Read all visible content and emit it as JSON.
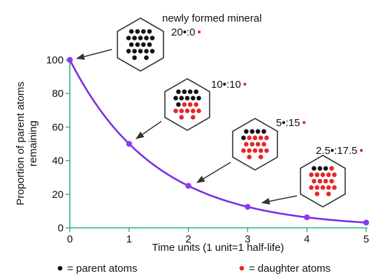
{
  "chart_data": {
    "type": "line",
    "title": "",
    "xlabel": "Time units (1 unit=1 half-life)",
    "ylabel": "Proportion of parent atoms remaining",
    "xlim": [
      0,
      5
    ],
    "ylim": [
      0,
      100
    ],
    "x_ticks": [
      0,
      1,
      2,
      3,
      4,
      5
    ],
    "y_ticks": [
      0,
      20,
      40,
      60,
      80,
      100
    ],
    "series": [
      {
        "values": [
          100,
          50,
          25,
          12.5,
          6.25,
          3.125
        ],
        "x": [
          0,
          1,
          2,
          3,
          4,
          5
        ]
      }
    ],
    "annotations": [
      {
        "title": "newly formed mineral",
        "parent": "20",
        "separator": ":",
        "daughter": "0",
        "parent_atoms": 20,
        "daughter_atoms": 0,
        "at_x": 0
      },
      {
        "title": "",
        "parent": "10",
        "separator": ":",
        "daughter": "10",
        "parent_atoms": 10,
        "daughter_atoms": 10,
        "at_x": 1
      },
      {
        "title": "",
        "parent": "5",
        "separator": ":",
        "daughter": "15",
        "parent_atoms": 5,
        "daughter_atoms": 15,
        "at_x": 2
      },
      {
        "title": "",
        "parent": "2.5",
        "separator": ":",
        "daughter": "17.5",
        "parent_atoms": 2.5,
        "daughter_atoms": 17.5,
        "at_x": 3
      }
    ],
    "legend": [
      {
        "label": "= parent atoms",
        "color": "#111111"
      },
      {
        "label": "= daughter atoms",
        "color": "#e8262a"
      }
    ],
    "colors": {
      "axes": "#2bb573",
      "curve": "#7a2ee6",
      "points": "#8a3cf0",
      "arrow": "#333333",
      "parent": "#111111",
      "daughter": "#e8262a"
    },
    "grid": false
  }
}
